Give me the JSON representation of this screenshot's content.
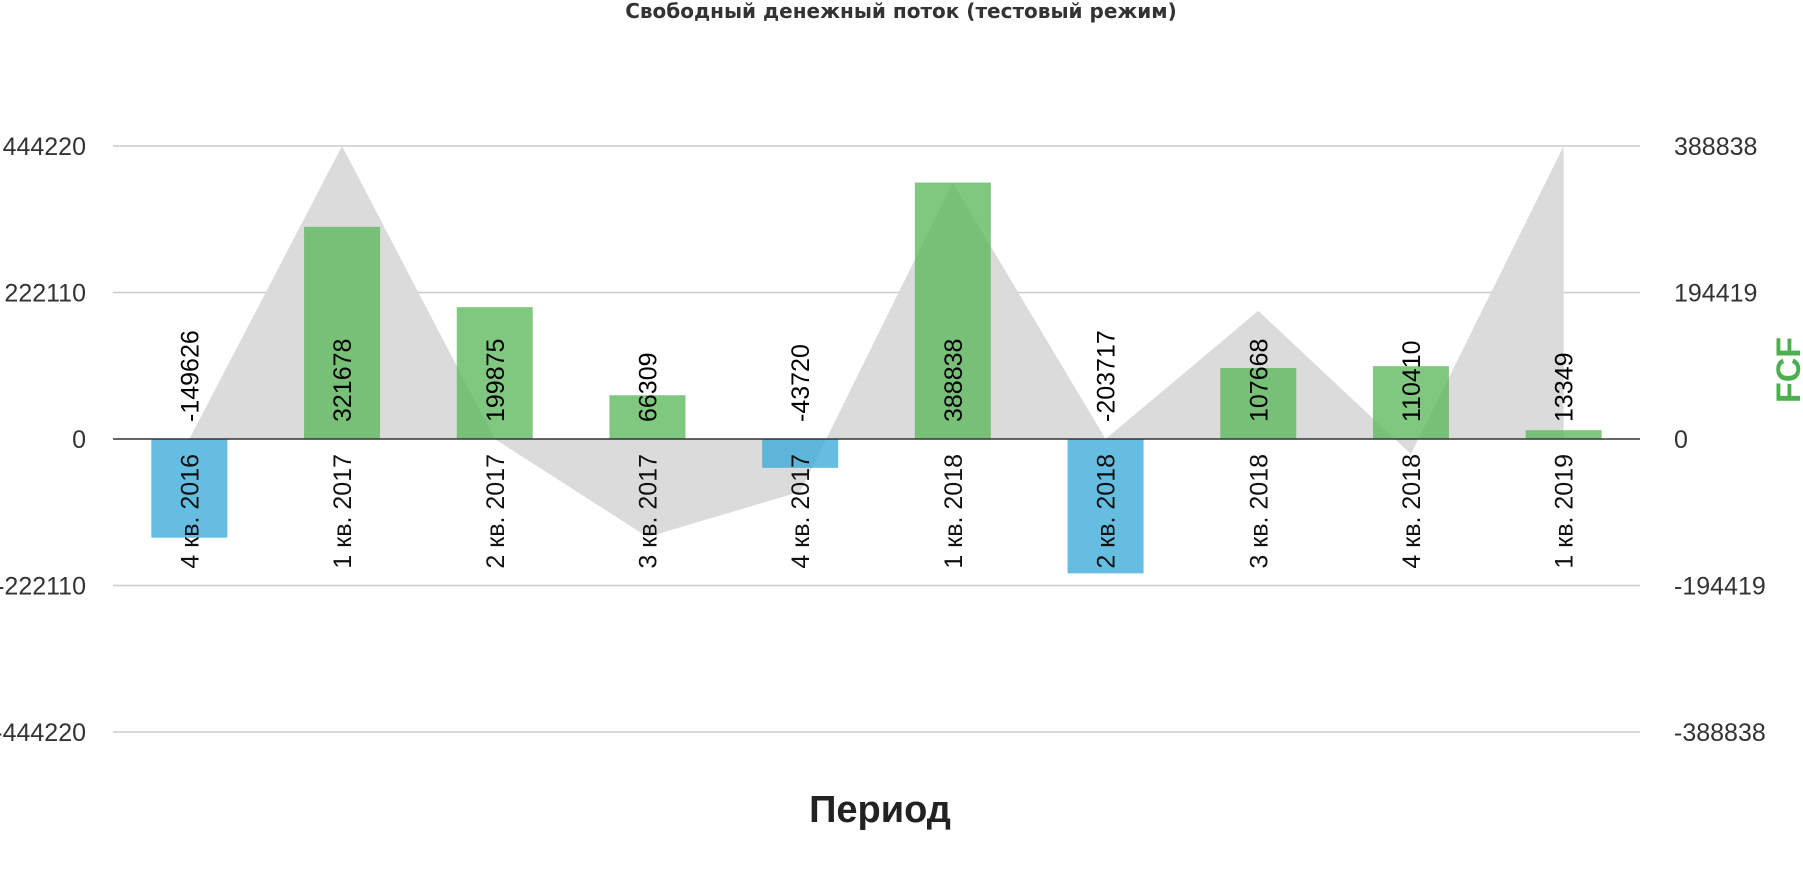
{
  "chart_data": {
    "type": "bar",
    "title": "Свободный денежный поток (тестовый режим)",
    "xlabel": "Период",
    "ylabel_right": "FCF",
    "categories": [
      "4 кв. 2016",
      "1 кв. 2017",
      "2 кв. 2017",
      "3 кв. 2017",
      "4 кв. 2017",
      "1 кв. 2018",
      "2 кв. 2018",
      "3 кв. 2018",
      "4 кв. 2018",
      "1 кв. 2019"
    ],
    "series": [
      {
        "type": "bar",
        "axis": "left",
        "values": [
          -149626,
          321678,
          199875,
          66309,
          -43720,
          388838,
          -203717,
          107668,
          110410,
          13349
        ],
        "positive_color": "#5cb85c",
        "negative_color": "#3aaad8"
      },
      {
        "type": "area",
        "axis": "right",
        "values": [
          0,
          388838,
          0,
          -130000,
          -70000,
          340000,
          0,
          170000,
          -20000,
          388838
        ],
        "color": "#d9d9d9"
      }
    ],
    "y_left": {
      "ticks": [
        "444220",
        "222110",
        "0",
        "-222110",
        "-444220"
      ],
      "range": [
        -444220,
        444220
      ]
    },
    "y_right": {
      "ticks": [
        "388838",
        "194419",
        "0",
        "-194419",
        "-388838"
      ],
      "range": [
        -388838,
        388838
      ]
    },
    "grid": true,
    "legend": "none",
    "ylabel_color": "#4caf50"
  }
}
